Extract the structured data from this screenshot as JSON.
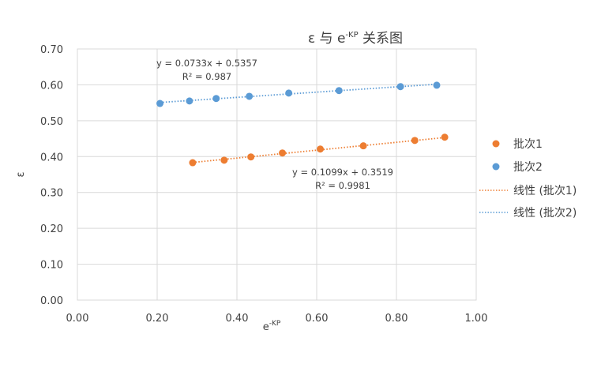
{
  "chart_data": {
    "type": "scatter",
    "title": "ε 与 e-KP 关系图",
    "title_parts": {
      "prefix": "ε 与 e",
      "sup": "-KP",
      "suffix": " 关系图"
    },
    "xlabel": "e-KP",
    "xlabel_parts": {
      "base": "e",
      "sup": "-KP"
    },
    "ylabel": "ε",
    "xlim": [
      0,
      1.0
    ],
    "ylim": [
      0,
      0.7
    ],
    "x_ticks": [
      "0.00",
      "0.20",
      "0.40",
      "0.60",
      "0.80",
      "1.00"
    ],
    "y_ticks": [
      "0.00",
      "0.10",
      "0.20",
      "0.30",
      "0.40",
      "0.50",
      "0.60",
      "0.70"
    ],
    "grid": true,
    "legend_position": "right",
    "series": [
      {
        "name": "批次1",
        "color": "#ED7D31",
        "marker": "circle",
        "x": [
          0.289,
          0.368,
          0.435,
          0.514,
          0.609,
          0.717,
          0.846,
          0.921
        ],
        "y": [
          0.383,
          0.39,
          0.399,
          0.41,
          0.421,
          0.43,
          0.445,
          0.454
        ]
      },
      {
        "name": "批次2",
        "color": "#5B9BD5",
        "marker": "circle",
        "x": [
          0.207,
          0.281,
          0.348,
          0.431,
          0.53,
          0.656,
          0.81,
          0.901
        ],
        "y": [
          0.548,
          0.555,
          0.562,
          0.568,
          0.577,
          0.584,
          0.595,
          0.599
        ]
      }
    ],
    "trendlines": [
      {
        "name": "线性 (批次1)",
        "series": "批次1",
        "color": "#ED7D31",
        "style": "dotted",
        "slope": 0.1099,
        "intercept": 0.3519,
        "equation": "y = 0.1099x + 0.3519",
        "r2_label": "R² = 0.9981",
        "x_range": [
          0.289,
          0.921
        ]
      },
      {
        "name": "线性 (批次2)",
        "series": "批次2",
        "color": "#5B9BD5",
        "style": "dotted",
        "slope": 0.0733,
        "intercept": 0.5357,
        "equation": "y = 0.0733x + 0.5357",
        "r2_label": "R² = 0.987",
        "x_range": [
          0.207,
          0.901
        ]
      }
    ],
    "legend": [
      "批次1",
      "批次2",
      "线性 (批次1)",
      "线性 (批次2)"
    ]
  }
}
